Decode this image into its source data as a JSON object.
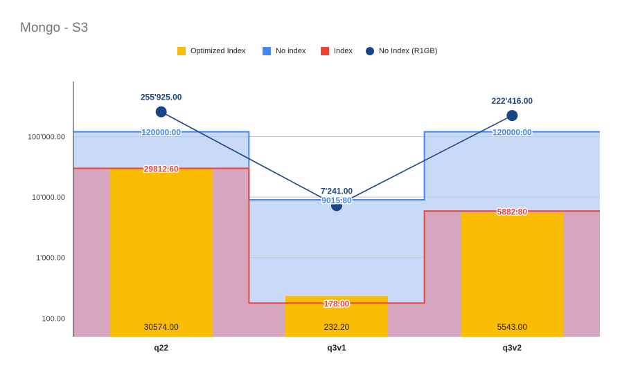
{
  "chart_title": "Mongo - S3",
  "legend": [
    {
      "label": "Optimized Index",
      "color": "#fbbc04",
      "shape": "square"
    },
    {
      "label": "No index",
      "color": "#4285f4",
      "shape": "square"
    },
    {
      "label": "Index",
      "color": "#ea4335",
      "shape": "square"
    },
    {
      "label": "No Index (R1GB)",
      "color": "#1c4587",
      "shape": "circle"
    }
  ],
  "chart_data": {
    "type": "bar",
    "title": "Mongo - S3",
    "y_scale": "log",
    "ylim": [
      45,
      1000000
    ],
    "y_ticks": [
      100,
      1000,
      10000,
      100000
    ],
    "y_tick_labels": [
      "100.00",
      "1'000.00",
      "10'000.00",
      "100'000.00"
    ],
    "categories": [
      "q22",
      "q3v1",
      "q3v2"
    ],
    "grid": true,
    "legend_position": "top",
    "series": [
      {
        "name": "Optimized Index",
        "kind": "bar",
        "color": "#fbbc04",
        "values": [
          30574.0,
          232.2,
          5543.0
        ],
        "labels": [
          "30574.00",
          "232.20",
          "5543.00"
        ]
      },
      {
        "name": "No index",
        "kind": "stepped-area",
        "color": "#4285f4",
        "fill": "#c9daf8",
        "values": [
          120000.0,
          9015.8,
          120000.0
        ],
        "labels": [
          "120000.00",
          "9015.80",
          "120000.00"
        ]
      },
      {
        "name": "Index",
        "kind": "stepped-area",
        "color": "#ea4335",
        "fill": "#d5a6bd",
        "values": [
          29812.6,
          178.0,
          5882.8
        ],
        "labels": [
          "29812.60",
          "178.00",
          "5882.80"
        ]
      },
      {
        "name": "No Index (R1GB)",
        "kind": "line",
        "color": "#1c4587",
        "values": [
          255925.0,
          7241.0,
          222416.0
        ],
        "labels": [
          "255'925.00",
          "7'241.00",
          "222'416.00"
        ]
      }
    ]
  }
}
